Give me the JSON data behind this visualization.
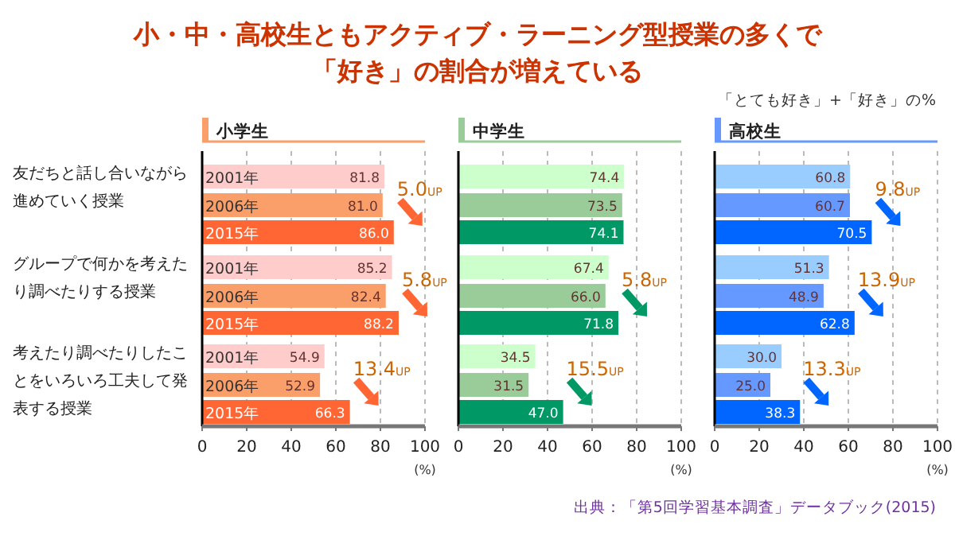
{
  "chart_data": [
    {
      "type": "other",
      "title": "小・中・高校生ともアクティブ・ラーニング型授業の多くで「好き」の割合が増えている",
      "subtitle": "「とても好き」+「好き」の%",
      "annotations": [
        "出典：「第5回学習基本調査」データブック(2015)"
      ]
    },
    {
      "type": "bar",
      "orientation": "horizontal",
      "title": "小学生",
      "categories": [
        "友だちと話し合いながら進めていく授業",
        "グループで何かを考えたり調べたりする授業",
        "考えたり調べたりしたことをいろいろ工夫して発表する授業"
      ],
      "series": [
        {
          "name": "2001年",
          "color": "#ffcccc",
          "values": [
            81.8,
            85.2,
            54.9
          ],
          "value_labels": [
            "81.8",
            "85.2",
            "54.9"
          ]
        },
        {
          "name": "2006年",
          "color": "#fa9f6a",
          "values": [
            81.0,
            82.4,
            52.9
          ],
          "value_labels": [
            "81.0",
            "82.4",
            "52.9"
          ]
        },
        {
          "name": "2015年",
          "color": "#ff6633",
          "values": [
            86.0,
            88.2,
            66.3
          ],
          "value_labels": [
            "86.0",
            "88.2",
            "66.3"
          ]
        }
      ],
      "xlim": [
        0,
        100
      ],
      "xticks": [
        0,
        20,
        40,
        60,
        80,
        100
      ],
      "xlabel": "(%)",
      "grid": "x",
      "annotations": [
        "5.0UP",
        "5.8UP",
        "13.4UP"
      ]
    },
    {
      "type": "bar",
      "orientation": "horizontal",
      "title": "中学生",
      "categories": [
        null,
        null,
        null
      ],
      "series": [
        {
          "color": "#ccffcc",
          "values": [
            74.4,
            67.4,
            34.5
          ],
          "value_labels": [
            "74.4",
            "67.4",
            "34.5"
          ]
        },
        {
          "color": "#99cc99",
          "values": [
            73.5,
            66.0,
            31.5
          ],
          "value_labels": [
            "73.5",
            "66.0",
            "31.5"
          ]
        },
        {
          "color": "#009966",
          "values": [
            74.1,
            71.8,
            47.0
          ],
          "value_labels": [
            "74.1",
            "71.8",
            "47.0"
          ]
        }
      ],
      "xlim": [
        0,
        100
      ],
      "xticks": [
        0,
        20,
        40,
        60,
        80,
        100
      ],
      "xlabel": "(%)",
      "grid": "x",
      "tick_labels": "x",
      "annotations": [
        "5.8UP",
        "15.5UP"
      ]
    },
    {
      "type": "bar",
      "orientation": "horizontal",
      "title": "高校生",
      "categories": [
        null,
        null,
        null
      ],
      "series": [
        {
          "color": "#99ccff",
          "values": [
            60.8,
            51.3,
            30.0
          ],
          "value_labels": [
            "60.8",
            "51.3",
            "30.0"
          ]
        },
        {
          "color": "#6699ff",
          "values": [
            60.7,
            48.9,
            25.0
          ],
          "value_labels": [
            "60.7",
            "48.9",
            "25.0"
          ]
        },
        {
          "color": "#0066ff",
          "values": [
            70.5,
            62.8,
            38.3
          ],
          "value_labels": [
            "70.5",
            "62.8",
            "38.3"
          ]
        }
      ],
      "xlim": [
        0,
        100
      ],
      "xticks": [
        0,
        20,
        40,
        60,
        80,
        100
      ],
      "xlabel": "(%)",
      "grid": "x",
      "tick_labels": "x",
      "annotations": [
        "9.8UP",
        "13.9UP",
        "13.3UP"
      ]
    }
  ]
}
